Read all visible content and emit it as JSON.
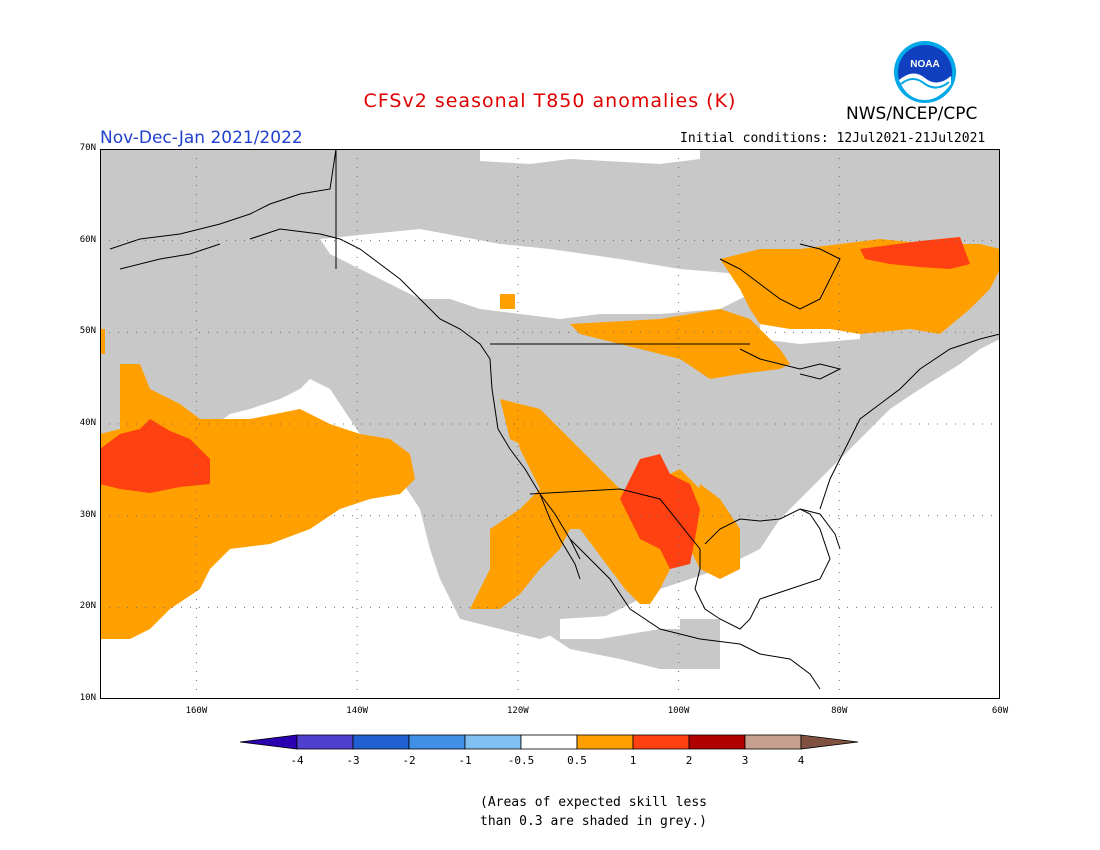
{
  "title": "CFSv2 seasonal T850 anomalies (K)",
  "season": "Nov-Dec-Jan 2021/2022",
  "initial_conditions": "Initial conditions: 12Jul2021-21Jul2021",
  "org": "NWS/NCEP/CPC",
  "logo_text": "NOAA",
  "note_line1": "(Areas of expected skill less",
  "note_line2": "than 0.3 are shaded in grey.)",
  "lat_labels": [
    "70N",
    "60N",
    "50N",
    "40N",
    "30N",
    "20N",
    "10N"
  ],
  "lon_labels": [
    "160W",
    "140W",
    "120W",
    "100W",
    "80W",
    "60W"
  ],
  "colorbar": {
    "labels": [
      "-4",
      "-3",
      "-2",
      "-1",
      "-0.5",
      "0.5",
      "1",
      "2",
      "3",
      "4"
    ],
    "colors": [
      "#2a00b0",
      "#5040d0",
      "#2060d0",
      "#4090e8",
      "#80c0f0",
      "#ffffff",
      "#ffa000",
      "#ff4010",
      "#b00000",
      "#c8a090",
      "#805040"
    ]
  },
  "colors": {
    "grey_low_skill": "#c8c8c8",
    "warm_0_5_to_1": "#ffa000",
    "warm_1_to_2": "#ff4010",
    "title": "#e00000",
    "season": "#2040d0"
  },
  "map": {
    "lon_range": [
      -172,
      -60
    ],
    "lat_range": [
      10,
      70
    ],
    "regions_1_to_2K": [
      "central North Pacific near 35N 165W",
      "Texas / northern Mexico",
      "northern Quebec / Labrador"
    ],
    "regions_0_5_to_1K": [
      "North Pacific subtropics",
      "US Southwest and Baja",
      "Great Lakes and Hudson Bay region",
      "Gulf of Mexico coast"
    ]
  }
}
